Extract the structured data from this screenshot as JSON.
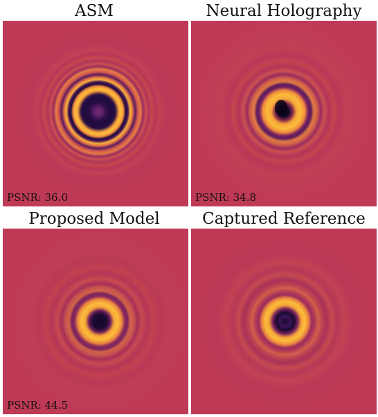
{
  "figure": {
    "panels": [
      {
        "title": "ASM",
        "psnr": "PSNR: 36.0",
        "colors": {
          "background": "#bf3a56",
          "bright": "#fbbd3a",
          "dark": "#1e0b3e",
          "core": "#5b1f6a"
        }
      },
      {
        "title": "Neural Holography",
        "psnr": "PSNR: 34.8",
        "colors": {
          "background": "#bf3a56",
          "bright": "#fbbd3a",
          "dark": "#0a0418"
        }
      },
      {
        "title": "Proposed Model",
        "psnr": "PSNR: 44.5",
        "colors": {
          "background": "#bf3a56",
          "bright": "#fbbd3a",
          "dark": "#150927"
        }
      },
      {
        "title": "Captured Reference",
        "psnr": "",
        "colors": {
          "background": "#bf3a56",
          "bright": "#fbbd3a",
          "dark": "#1a0a30"
        }
      }
    ]
  }
}
